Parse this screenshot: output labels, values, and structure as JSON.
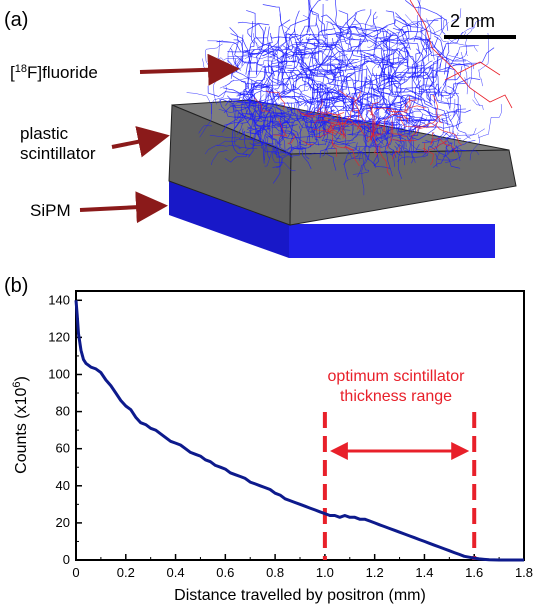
{
  "panel_a": {
    "label": "(a)",
    "scale_bar": "2 mm",
    "labels": {
      "fluoride_prefix": "[",
      "fluoride_sup": "18",
      "fluoride_suffix": "F]fluoride",
      "plastic_line1": "plastic",
      "plastic_line2": "scintillator",
      "sipm": "SiPM"
    },
    "colors": {
      "tracks": "#1a1aff",
      "secondary_tracks": "#e8202a",
      "scintillator": "#6b6b6b",
      "sipm": "#1c1cde",
      "arrows": "#8b1a1a"
    }
  },
  "panel_b": {
    "label": "(b)",
    "annotation_line1": "optimum scintillator",
    "annotation_line2": "thickness range",
    "annotation_color": "#e8202a",
    "curve_color": "#0d1a8c"
  },
  "chart_data": {
    "type": "line",
    "xlabel": "Distance travelled by positron (mm)",
    "ylabel_main": "Counts (x10",
    "ylabel_sup": "6",
    "ylabel_end": ")",
    "xlim": [
      0,
      1.8
    ],
    "ylim": [
      0,
      145
    ],
    "x_ticks": [
      "0",
      "0.2",
      "0.4",
      "0.6",
      "0.8",
      "1.0",
      "1.2",
      "1.4",
      "1.6",
      "1.8"
    ],
    "y_ticks": [
      "0",
      "20",
      "40",
      "60",
      "80",
      "100",
      "120",
      "140"
    ],
    "grid": false,
    "range_markers": [
      1.0,
      1.6
    ],
    "series": [
      {
        "x": [
          0,
          0.005,
          0.01,
          0.02,
          0.03,
          0.04,
          0.05,
          0.06,
          0.08,
          0.1,
          0.12,
          0.14,
          0.16,
          0.18,
          0.2,
          0.22,
          0.24,
          0.26,
          0.28,
          0.3,
          0.32,
          0.34,
          0.36,
          0.38,
          0.4,
          0.42,
          0.44,
          0.46,
          0.48,
          0.5,
          0.52,
          0.54,
          0.56,
          0.58,
          0.6,
          0.62,
          0.64,
          0.66,
          0.68,
          0.7,
          0.72,
          0.74,
          0.76,
          0.78,
          0.8,
          0.82,
          0.84,
          0.86,
          0.88,
          0.9,
          0.92,
          0.94,
          0.96,
          0.98,
          1.0,
          1.02,
          1.04,
          1.06,
          1.08,
          1.1,
          1.12,
          1.14,
          1.16,
          1.18,
          1.2,
          1.22,
          1.24,
          1.26,
          1.28,
          1.3,
          1.32,
          1.34,
          1.36,
          1.38,
          1.4,
          1.42,
          1.44,
          1.46,
          1.48,
          1.5,
          1.52,
          1.54,
          1.56,
          1.58,
          1.6,
          1.62,
          1.64,
          1.66,
          1.7,
          1.75,
          1.8
        ],
        "y": [
          140,
          132,
          122,
          113,
          108,
          106,
          105,
          104,
          103,
          101,
          97,
          94,
          90,
          86,
          83,
          81,
          77,
          74,
          73,
          71,
          70,
          68,
          66,
          64,
          63,
          62,
          60,
          58,
          57,
          56,
          54,
          53,
          51,
          50,
          49,
          47,
          46,
          45,
          44,
          42,
          41,
          40,
          39,
          38,
          36,
          35,
          33,
          32,
          31,
          30,
          29,
          28,
          27,
          26,
          25,
          24,
          24,
          23,
          24,
          23,
          23,
          22,
          22,
          21,
          20,
          19,
          18,
          17,
          16,
          15,
          14,
          13,
          12,
          11,
          10,
          9,
          8,
          7,
          6,
          5,
          4,
          3,
          2,
          1.5,
          1,
          0.6,
          0.3,
          0.1,
          0,
          0,
          0
        ]
      }
    ]
  }
}
